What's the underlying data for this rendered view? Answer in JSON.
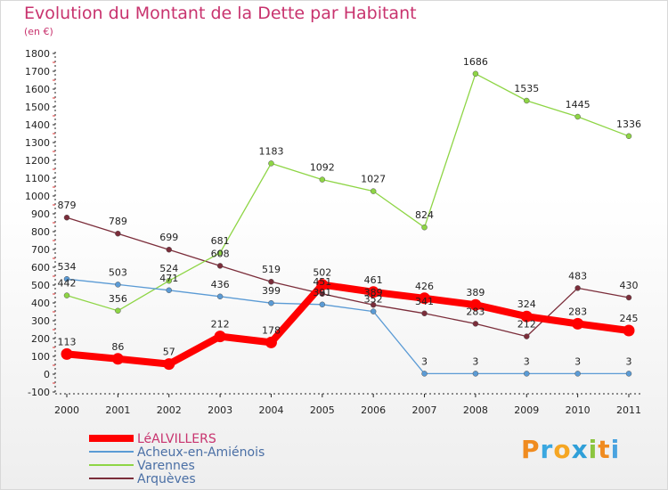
{
  "chart_data": {
    "type": "line",
    "title": "Evolution du Montant de la Dette par Habitant",
    "subtitle": "(en €)",
    "x": [
      "2000",
      "2001",
      "2002",
      "2003",
      "2004",
      "2005",
      "2006",
      "2007",
      "2008",
      "2009",
      "2010",
      "2011"
    ],
    "ylim": [
      -100,
      1800
    ],
    "yticks": [
      -100,
      0,
      100,
      200,
      300,
      400,
      500,
      600,
      700,
      800,
      900,
      1000,
      1100,
      1200,
      1300,
      1400,
      1500,
      1600,
      1700,
      1800
    ],
    "grid": false,
    "legend_position": "bottom-left",
    "series": [
      {
        "name": "LéALVILLERS",
        "color": "#ff0000",
        "values": [
          113,
          86,
          57,
          212,
          178,
          502,
          461,
          426,
          389,
          324,
          283,
          245
        ]
      },
      {
        "name": "Acheux-en-Amiénois",
        "color": "#5b9bd5",
        "values": [
          534,
          503,
          471,
          436,
          399,
          391,
          352,
          3,
          3,
          3,
          3,
          3
        ]
      },
      {
        "name": "Varennes",
        "color": "#8ed545",
        "values": [
          442,
          356,
          524,
          681,
          1183,
          1092,
          1027,
          824,
          1686,
          1535,
          1445,
          1336
        ]
      },
      {
        "name": "Arquèves",
        "color": "#7b2d3a",
        "values": [
          879,
          789,
          699,
          608,
          519,
          451,
          389,
          341,
          283,
          212,
          483,
          430
        ]
      }
    ]
  },
  "logo": {
    "text": "Proxiti",
    "colors": [
      "#f08b1f",
      "#3aa7e0",
      "#f5a623",
      "#2f9fd8",
      "#8bc53f",
      "#f08b1f",
      "#4aa3df"
    ]
  }
}
